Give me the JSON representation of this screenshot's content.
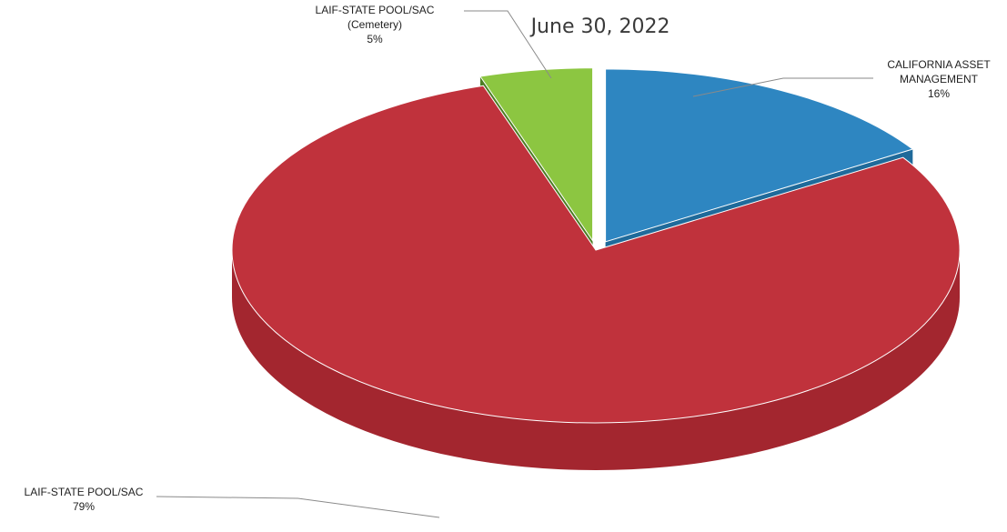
{
  "chart_data": {
    "type": "pie",
    "title_visible": [
      "June 30, 2022"
    ],
    "style": "3d-exploded",
    "slices": [
      {
        "label_lines": [
          "CALIFORNIA ASSET",
          "MANAGEMENT"
        ],
        "value": 16,
        "value_label": "16%",
        "color": "#2e86c1",
        "side_color": "#1f6a9a"
      },
      {
        "label_lines": [
          "LAIF-STATE POOL/SAC"
        ],
        "value": 79,
        "value_label": "79%",
        "color": "#c0323c",
        "side_color": "#a3262f"
      },
      {
        "label_lines": [
          "LAIF-STATE POOL/SAC",
          "(Cemetery)"
        ],
        "value": 5,
        "value_label": "5%",
        "color": "#8cc641",
        "side_color": "#4c7d23"
      }
    ]
  }
}
